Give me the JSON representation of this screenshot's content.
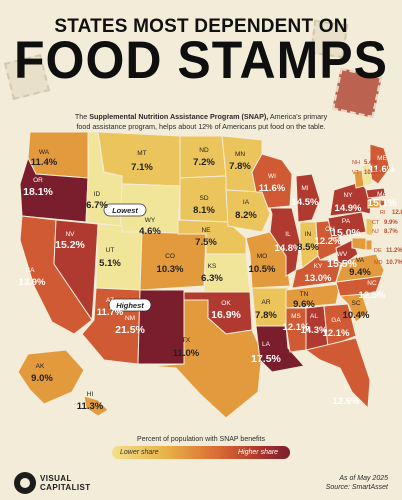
{
  "header": {
    "title_line1": "STATES MOST DEPENDENT ON",
    "title_line2": "FOOD STAMPS",
    "subtitle_prefix": "The ",
    "subtitle_bold": "Supplemental Nutrition Assistance Program (SNAP),",
    "subtitle_rest": "America's primary food assistance program, helps about 12% of Americans put food on the table."
  },
  "callouts": {
    "lowest": "Lowest",
    "highest": "Highest"
  },
  "states": [
    {
      "abbr": "WA",
      "value": "11.4%"
    },
    {
      "abbr": "OR",
      "value": "18.1%"
    },
    {
      "abbr": "CA",
      "value": "13.9%"
    },
    {
      "abbr": "NV",
      "value": "15.2%"
    },
    {
      "abbr": "ID",
      "value": "6.7%"
    },
    {
      "abbr": "MT",
      "value": "7.1%"
    },
    {
      "abbr": "WY",
      "value": "4.6%"
    },
    {
      "abbr": "UT",
      "value": "5.1%"
    },
    {
      "abbr": "CO",
      "value": "10.3%"
    },
    {
      "abbr": "AZ",
      "value": "11.7%"
    },
    {
      "abbr": "NM",
      "value": "21.5%"
    },
    {
      "abbr": "ND",
      "value": "7.2%"
    },
    {
      "abbr": "SD",
      "value": "8.1%"
    },
    {
      "abbr": "NE",
      "value": "7.5%"
    },
    {
      "abbr": "KS",
      "value": "6.3%"
    },
    {
      "abbr": "OK",
      "value": "16.9%"
    },
    {
      "abbr": "TX",
      "value": "11.0%"
    },
    {
      "abbr": "MN",
      "value": "7.8%"
    },
    {
      "abbr": "IA",
      "value": "8.2%"
    },
    {
      "abbr": "MO",
      "value": "10.5%"
    },
    {
      "abbr": "AR",
      "value": "7.8%"
    },
    {
      "abbr": "LA",
      "value": "17.5%"
    },
    {
      "abbr": "WI",
      "value": "11.6%"
    },
    {
      "abbr": "IL",
      "value": "14.8%"
    },
    {
      "abbr": "MI",
      "value": "14.5%"
    },
    {
      "abbr": "IN",
      "value": "8.5%"
    },
    {
      "abbr": "OH",
      "value": "12.2%"
    },
    {
      "abbr": "KY",
      "value": "13.0%"
    },
    {
      "abbr": "TN",
      "value": "9.6%"
    },
    {
      "abbr": "MS",
      "value": "12.1%"
    },
    {
      "abbr": "AL",
      "value": "14.3%"
    },
    {
      "abbr": "GA",
      "value": "12.1%"
    },
    {
      "abbr": "FL",
      "value": "12.6%"
    },
    {
      "abbr": "SC",
      "value": "10.4%"
    },
    {
      "abbr": "NC",
      "value": "12.5%"
    },
    {
      "abbr": "VA",
      "value": "9.4%"
    },
    {
      "abbr": "WV",
      "value": "15.5%"
    },
    {
      "abbr": "PA",
      "value": "15.0%"
    },
    {
      "abbr": "NY",
      "value": "14.9%"
    },
    {
      "abbr": "ME",
      "value": "11.6%"
    },
    {
      "abbr": "NH",
      "value": "5.4%"
    },
    {
      "abbr": "VT",
      "value": "10.0%"
    },
    {
      "abbr": "MA",
      "value": "15.1%"
    },
    {
      "abbr": "RI",
      "value": "12.8%"
    },
    {
      "abbr": "CT",
      "value": "9.9%"
    },
    {
      "abbr": "NJ",
      "value": "8.7%"
    },
    {
      "abbr": "DE",
      "value": "11.2%"
    },
    {
      "abbr": "MD",
      "value": "10.7%"
    },
    {
      "abbr": "AK",
      "value": "9.0%"
    },
    {
      "abbr": "HI",
      "value": "11.3%"
    }
  ],
  "legend": {
    "title": "Percent of population with SNAP benefits",
    "low_label": "Lower share",
    "high_label": "Higher share"
  },
  "footer": {
    "brand_line1": "VISUAL",
    "brand_line2": "CAPITALIST",
    "as_of": "As of May 2025",
    "source": "Source: SmartAsset"
  },
  "colors": {
    "lowest": "#f1e59a",
    "low": "#ecc45c",
    "mid": "#e39a3d",
    "high": "#cf5a33",
    "higher": "#b03a30",
    "highest": "#7a1d2c",
    "background": "#f3ecd9"
  }
}
